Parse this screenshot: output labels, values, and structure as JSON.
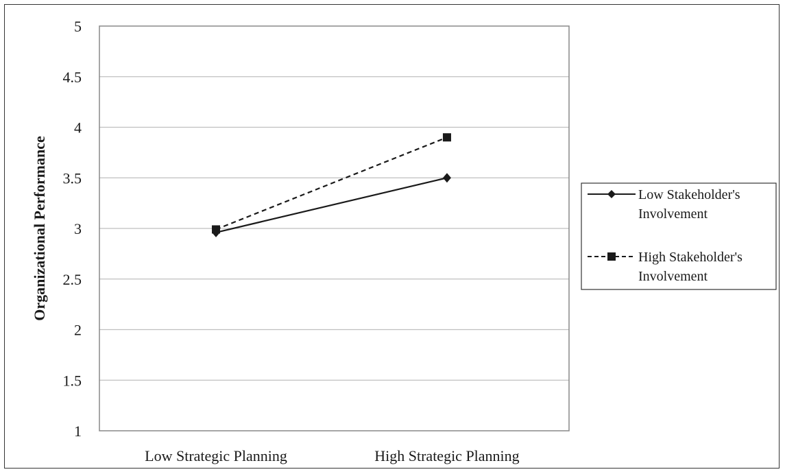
{
  "chart_data": {
    "type": "line",
    "categories": [
      "Low Strategic Planning",
      "High Strategic Planning"
    ],
    "series": [
      {
        "name": "Low Stakeholder's Involvement",
        "values": [
          2.96,
          3.5
        ],
        "line_style": "solid",
        "marker": "diamond"
      },
      {
        "name": "High Stakeholder's Involvement",
        "values": [
          2.99,
          3.9
        ],
        "line_style": "dashed",
        "marker": "square"
      }
    ],
    "legend": {
      "position": "right",
      "entries": [
        [
          "Low Stakeholder's",
          "Involvement"
        ],
        [
          "High Stakeholder's",
          "Involvement"
        ]
      ]
    },
    "title": "",
    "xlabel": "",
    "ylabel": "Organizational Performance",
    "ylim": [
      1,
      5
    ],
    "yticks": [
      "1",
      "1.5",
      "2",
      "2.5",
      "3",
      "3.5",
      "4",
      "4.5",
      "5"
    ],
    "grid": "horizontal",
    "colors": {
      "line": "#1a1a1a",
      "grid": "#bfbfbf",
      "axis": "#888888"
    }
  }
}
